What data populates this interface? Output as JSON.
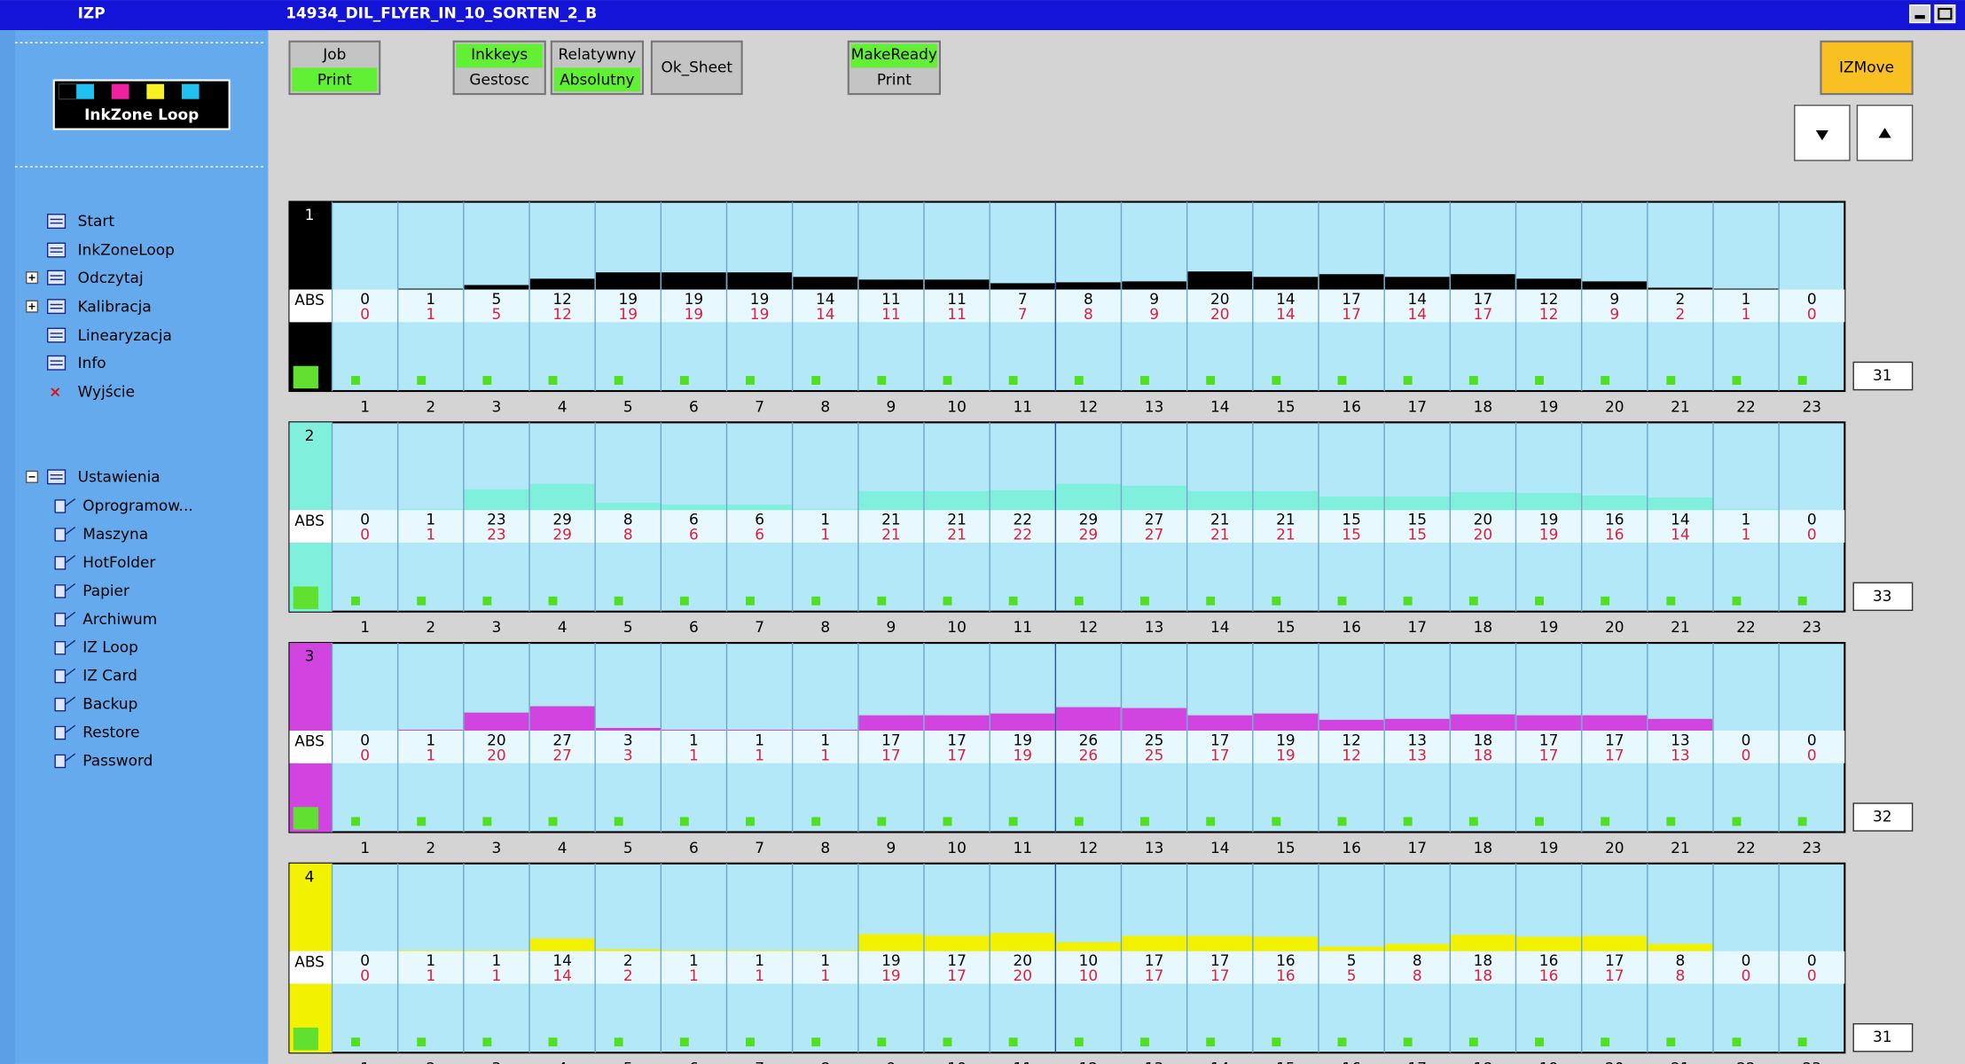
{
  "title_bar": {
    "app": "IZP",
    "job": "14934_DIL_FLYER_IN_10_SORTEN_2_B"
  },
  "logo": "InkZone Loop",
  "menu": [
    "Start",
    "InkZoneLoop",
    "Odczytaj",
    "Kalibracja",
    "Linearyzacja",
    "Info",
    "Wyjście"
  ],
  "settings": {
    "label": "Ustawienia",
    "items": [
      "Oprogramow...",
      "Maszyna",
      "HotFolder",
      "Papier",
      "Archiwum",
      "IZ Loop",
      "IZ Card",
      "Backup",
      "Restore",
      "Password"
    ]
  },
  "buttons": [
    {
      "top": "Job",
      "bottom": "Print"
    },
    {
      "top": "Inkkeys",
      "bottom": "Gestosc"
    },
    {
      "top": "Relatywny",
      "bottom": "Absolutny"
    },
    {
      "label": "Ok_Sheet"
    },
    {
      "top": "MakeReady",
      "bottom": "Print"
    },
    {
      "label": "IZMove"
    }
  ],
  "zones": [
    1,
    2,
    3,
    4,
    5,
    6,
    7,
    8,
    9,
    10,
    11,
    12,
    13,
    14,
    15,
    16,
    17,
    18,
    19,
    20,
    21,
    22,
    23
  ],
  "mode_label": "ABS",
  "panels": [
    {
      "label": "1",
      "color": "#000000",
      "set": [
        0,
        1,
        5,
        12,
        19,
        19,
        19,
        14,
        11,
        11,
        7,
        8,
        9,
        20,
        14,
        17,
        14,
        17,
        12,
        9,
        2,
        1,
        0
      ],
      "actual": [
        0,
        1,
        5,
        12,
        19,
        19,
        19,
        14,
        11,
        11,
        7,
        8,
        9,
        20,
        14,
        17,
        14,
        17,
        12,
        9,
        2,
        1,
        0
      ],
      "count": 31
    },
    {
      "label": "2",
      "color": "#80f0dc",
      "set": [
        0,
        1,
        23,
        29,
        8,
        6,
        6,
        1,
        21,
        21,
        22,
        29,
        27,
        21,
        21,
        15,
        15,
        20,
        19,
        16,
        14,
        1,
        0
      ],
      "actual": [
        0,
        1,
        23,
        29,
        8,
        6,
        6,
        1,
        21,
        21,
        22,
        29,
        27,
        21,
        21,
        15,
        15,
        20,
        19,
        16,
        14,
        1,
        0
      ],
      "count": 33
    },
    {
      "label": "3",
      "color": "#d244e0",
      "set": [
        0,
        1,
        20,
        27,
        3,
        1,
        1,
        1,
        17,
        17,
        19,
        26,
        25,
        17,
        19,
        12,
        13,
        18,
        17,
        17,
        13,
        0,
        0
      ],
      "actual": [
        0,
        1,
        20,
        27,
        3,
        1,
        1,
        1,
        17,
        17,
        19,
        26,
        25,
        17,
        19,
        12,
        13,
        18,
        17,
        17,
        13,
        0,
        0
      ],
      "count": 32
    },
    {
      "label": "4",
      "color": "#f2f200",
      "set": [
        0,
        1,
        1,
        14,
        2,
        1,
        1,
        1,
        19,
        17,
        20,
        10,
        17,
        17,
        16,
        5,
        8,
        18,
        16,
        17,
        8,
        0,
        0
      ],
      "actual": [
        0,
        1,
        1,
        14,
        2,
        1,
        1,
        1,
        19,
        17,
        20,
        10,
        17,
        17,
        16,
        5,
        8,
        18,
        16,
        17,
        8,
        0,
        0
      ],
      "count": 31
    }
  ]
}
